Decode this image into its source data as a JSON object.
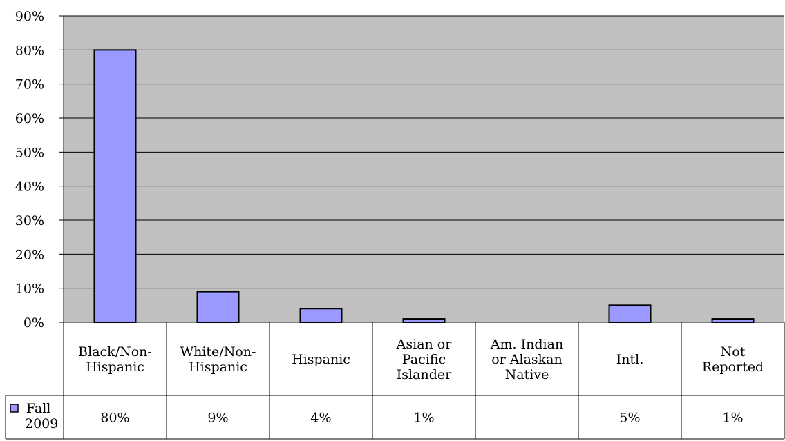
{
  "chart_data": {
    "type": "bar",
    "categories": [
      [
        "Black/Non-",
        "Hispanic"
      ],
      [
        "White/Non-",
        "Hispanic"
      ],
      [
        "Hispanic"
      ],
      [
        "Asian or",
        "Pacific",
        "Islander"
      ],
      [
        "Am. Indian",
        "or Alaskan",
        "Native"
      ],
      [
        "Intl."
      ],
      [
        "Not",
        "Reported"
      ]
    ],
    "series": [
      {
        "name": "Fall 2009",
        "name_lines": [
          "Fall",
          "2009"
        ],
        "values": [
          80,
          9,
          4,
          1,
          null,
          5,
          1
        ],
        "labels": [
          "80%",
          "9%",
          "4%",
          "1%",
          "",
          "5%",
          "1%"
        ]
      }
    ],
    "y_ticks": [
      "0%",
      "10%",
      "20%",
      "30%",
      "40%",
      "50%",
      "60%",
      "70%",
      "80%",
      "90%"
    ],
    "ylim": [
      0,
      90
    ],
    "grid": true,
    "legend": "data-table",
    "colors": {
      "plot_background": "#c0c0c0",
      "bar_fill": "#9999ff",
      "bar_stroke": "#000000",
      "gridline": "#000000"
    }
  }
}
